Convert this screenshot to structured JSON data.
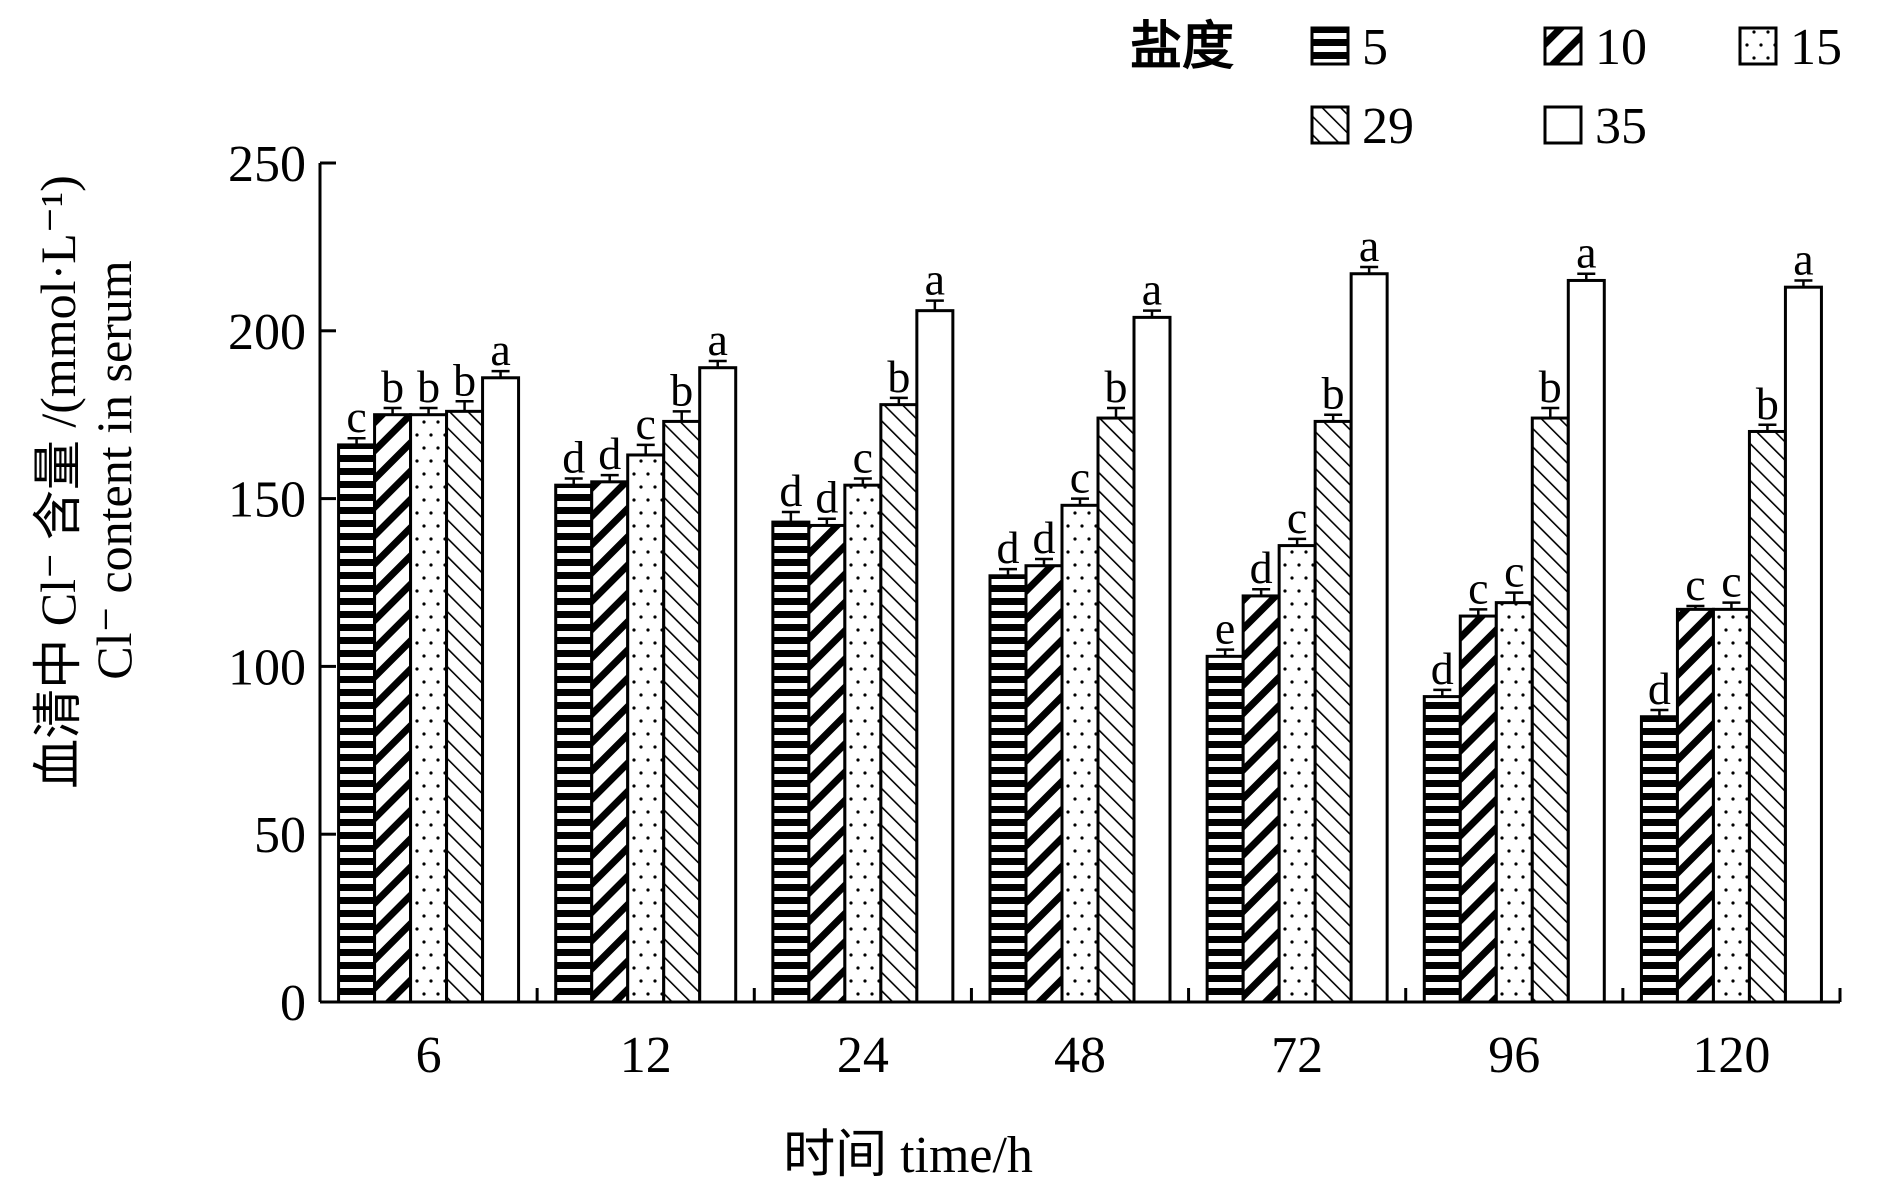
{
  "chart_data": {
    "type": "bar",
    "xlabel": "时间 time/h",
    "ylabel_line1": "血清中 Cl⁻ 含量 /(mmol·L⁻¹)",
    "ylabel_line2": "Cl⁻ content in serum",
    "ylim": [
      0,
      250
    ],
    "yticks": [
      0,
      50,
      100,
      150,
      200,
      250
    ],
    "grid": false,
    "legend_title": "盐度",
    "legend_position": "top-right",
    "categories": [
      "6",
      "12",
      "24",
      "48",
      "72",
      "96",
      "120"
    ],
    "series": [
      {
        "name": "5",
        "pattern": "horizontal-stripes",
        "values": [
          166,
          154,
          143,
          127,
          103,
          91,
          85
        ],
        "errors": [
          2,
          2,
          3,
          2,
          2,
          2,
          2
        ],
        "letters": [
          "c",
          "d",
          "d",
          "d",
          "e",
          "d",
          "d"
        ]
      },
      {
        "name": "10",
        "pattern": "diagonal-down",
        "values": [
          175,
          155,
          142,
          130,
          121,
          115,
          117
        ],
        "errors": [
          2,
          2,
          2,
          2,
          2,
          2,
          1
        ],
        "letters": [
          "b",
          "d",
          "d",
          "d",
          "d",
          "c",
          "c"
        ]
      },
      {
        "name": "15",
        "pattern": "dots",
        "values": [
          175,
          163,
          154,
          148,
          136,
          119,
          117
        ],
        "errors": [
          2,
          3,
          2,
          2,
          2,
          3,
          2
        ],
        "letters": [
          "b",
          "c",
          "c",
          "c",
          "c",
          "c",
          "c"
        ]
      },
      {
        "name": "29",
        "pattern": "diagonal-up",
        "values": [
          176,
          173,
          178,
          174,
          173,
          174,
          170
        ],
        "errors": [
          3,
          3,
          2,
          3,
          2,
          3,
          2
        ],
        "letters": [
          "b",
          "b",
          "b",
          "b",
          "b",
          "b",
          "b"
        ]
      },
      {
        "name": "35",
        "pattern": "open",
        "values": [
          186,
          189,
          206,
          204,
          217,
          215,
          213
        ],
        "errors": [
          2,
          2,
          3,
          2,
          2,
          2,
          2
        ],
        "letters": [
          "a",
          "a",
          "a",
          "a",
          "a",
          "a",
          "a"
        ]
      }
    ]
  }
}
